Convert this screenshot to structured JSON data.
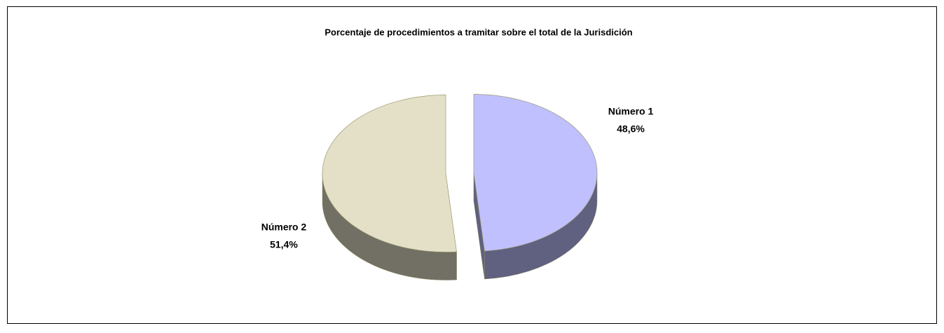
{
  "chart_data": {
    "type": "pie",
    "title": "Porcentaje de procedimientos a tramitar sobre el total de la Jurisdición",
    "categories": [
      "Número 1",
      "Número 2"
    ],
    "values": [
      48.6,
      51.4
    ],
    "value_labels": [
      "48,6%",
      "51,4%"
    ],
    "colors": [
      "#c0c0ff",
      "#e4e0c8"
    ]
  }
}
